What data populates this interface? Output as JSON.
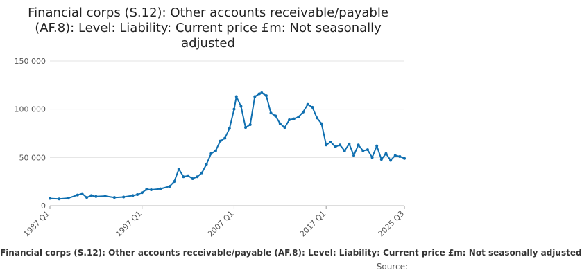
{
  "chart_data": {
    "type": "line",
    "title": "Financial corps (S.12): Other accounts receivable/payable (AF.8): Level: Liability: Current price £m: Not seasonally adjusted",
    "xlabel": "",
    "ylabel": "",
    "ylim": [
      0,
      150000
    ],
    "yticks": [
      0,
      50000,
      100000,
      150000
    ],
    "ytick_labels": [
      "0",
      "50 000",
      "100 000",
      "150 000"
    ],
    "xticks": [
      "1987 Q1",
      "1997 Q1",
      "2007 Q1",
      "2017 Q1",
      "2025 Q3"
    ],
    "grid": "horizontal",
    "line_color": "#0f6fb0",
    "series": [
      {
        "name": "Financial corps (S.12): Other accounts receivable/payable (AF.8): Level: Liability: Current price £m: Not seasonally adjusted",
        "points": [
          [
            "1987 Q1",
            7500
          ],
          [
            "1988 Q1",
            7000
          ],
          [
            "1989 Q1",
            7800
          ],
          [
            "1990 Q1",
            11000
          ],
          [
            "1990 Q3",
            12500
          ],
          [
            "1991 Q1",
            8500
          ],
          [
            "1991 Q3",
            10500
          ],
          [
            "1992 Q1",
            9500
          ],
          [
            "1993 Q1",
            10000
          ],
          [
            "1994 Q1",
            8500
          ],
          [
            "1995 Q1",
            9000
          ],
          [
            "1996 Q1",
            10500
          ],
          [
            "1996 Q3",
            11500
          ],
          [
            "1997 Q1",
            13500
          ],
          [
            "1997 Q3",
            17000
          ],
          [
            "1998 Q1",
            16500
          ],
          [
            "1999 Q1",
            17500
          ],
          [
            "2000 Q1",
            20000
          ],
          [
            "2000 Q3",
            25000
          ],
          [
            "2001 Q1",
            38000
          ],
          [
            "2001 Q3",
            30000
          ],
          [
            "2002 Q1",
            31000
          ],
          [
            "2002 Q3",
            28000
          ],
          [
            "2003 Q1",
            30000
          ],
          [
            "2003 Q3",
            34000
          ],
          [
            "2004 Q1",
            43000
          ],
          [
            "2004 Q3",
            54000
          ],
          [
            "2005 Q1",
            57000
          ],
          [
            "2005 Q3",
            67000
          ],
          [
            "2006 Q1",
            70000
          ],
          [
            "2006 Q3",
            80000
          ],
          [
            "2007 Q1",
            100000
          ],
          [
            "2007 Q2",
            113000
          ],
          [
            "2007 Q4",
            103000
          ],
          [
            "2008 Q2",
            81000
          ],
          [
            "2008 Q4",
            84000
          ],
          [
            "2009 Q2",
            113000
          ],
          [
            "2009 Q4",
            116000
          ],
          [
            "2010 Q1",
            117000
          ],
          [
            "2010 Q3",
            114000
          ],
          [
            "2011 Q1",
            96000
          ],
          [
            "2011 Q3",
            93000
          ],
          [
            "2012 Q1",
            85000
          ],
          [
            "2012 Q3",
            81000
          ],
          [
            "2013 Q1",
            89000
          ],
          [
            "2013 Q3",
            90000
          ],
          [
            "2014 Q1",
            92000
          ],
          [
            "2014 Q3",
            97000
          ],
          [
            "2015 Q1",
            105000
          ],
          [
            "2015 Q3",
            102000
          ],
          [
            "2016 Q1",
            91000
          ],
          [
            "2016 Q3",
            85000
          ],
          [
            "2017 Q1",
            63000
          ],
          [
            "2017 Q3",
            66000
          ],
          [
            "2018 Q1",
            61000
          ],
          [
            "2018 Q3",
            63000
          ],
          [
            "2019 Q1",
            57000
          ],
          [
            "2019 Q3",
            64000
          ],
          [
            "2020 Q1",
            52000
          ],
          [
            "2020 Q3",
            63000
          ],
          [
            "2021 Q1",
            57000
          ],
          [
            "2021 Q3",
            58000
          ],
          [
            "2022 Q1",
            50000
          ],
          [
            "2022 Q3",
            62000
          ],
          [
            "2023 Q1",
            48000
          ],
          [
            "2023 Q3",
            54000
          ],
          [
            "2024 Q1",
            47000
          ],
          [
            "2024 Q3",
            52000
          ],
          [
            "2025 Q1",
            51000
          ],
          [
            "2025 Q3",
            49000
          ]
        ]
      }
    ]
  },
  "footer": {
    "series_label": "Financial corps (S.12): Other accounts receivable/payable (AF.8): Level: Liability: Current price £m: Not seasonally adjusted",
    "source_label": "Source:"
  }
}
